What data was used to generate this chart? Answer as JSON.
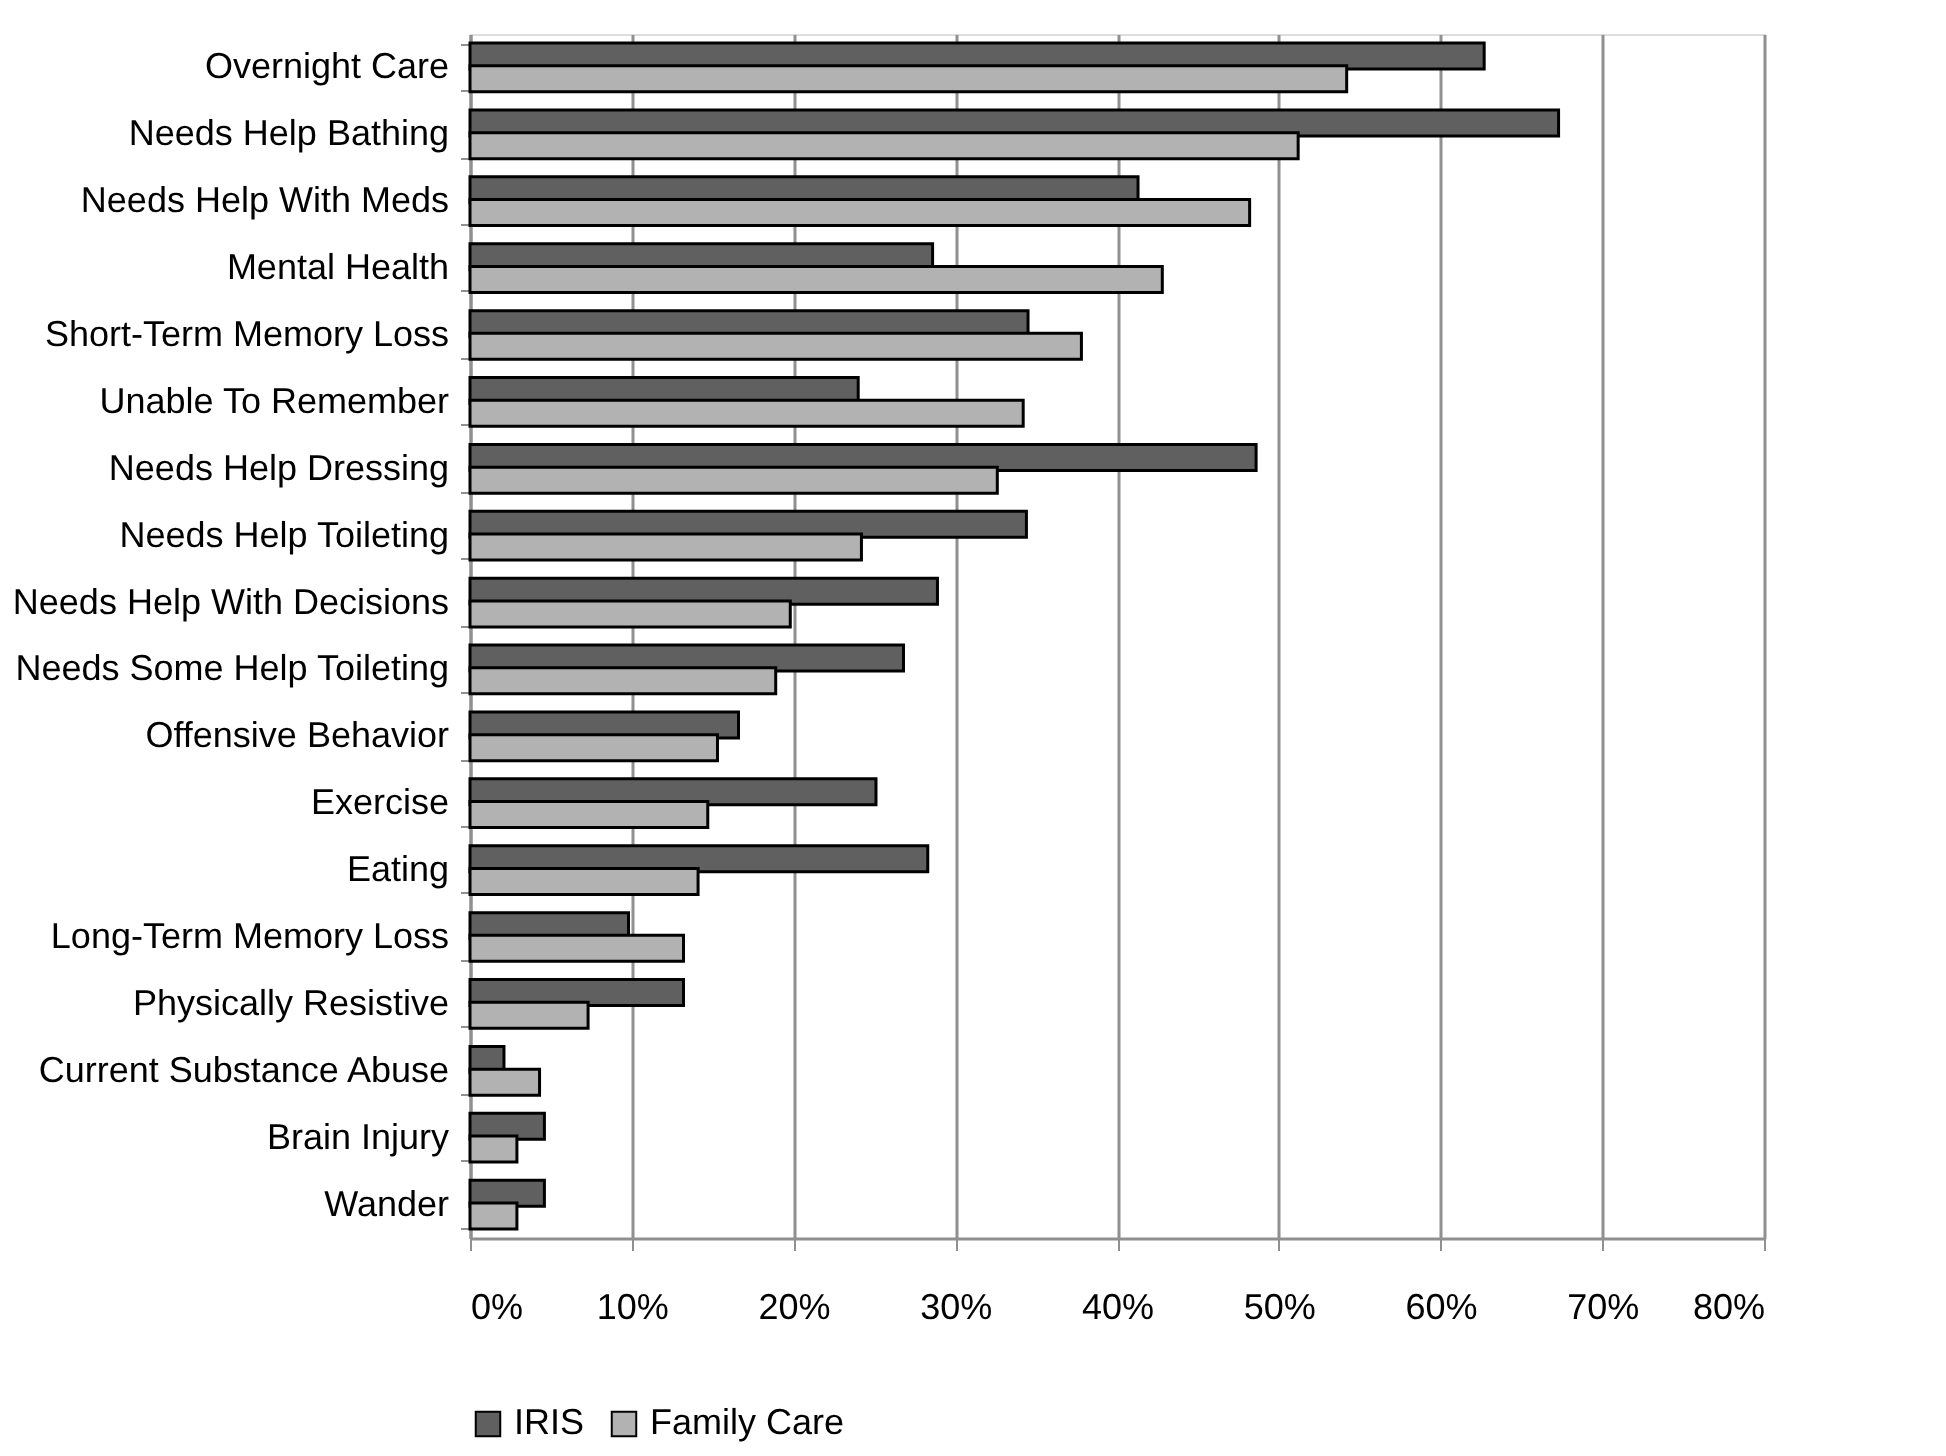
{
  "chart_data": {
    "type": "bar",
    "orientation": "horizontal",
    "categories": [
      "Overnight Care",
      "Needs Help Bathing",
      "Needs Help With Meds",
      "Mental Health",
      "Short-Term Memory Loss",
      "Unable To Remember",
      "Needs Help Dressing",
      "Needs Help Toileting",
      "Needs Help With Decisions",
      "Needs Some Help Toileting",
      "Offensive Behavior",
      "Exercise",
      "Eating",
      "Long-Term Memory Loss",
      "Physically Resistive",
      "Current Substance Abuse",
      "Brain Injury",
      "Wander"
    ],
    "series": [
      {
        "name": "IRIS",
        "color": "#606060",
        "values": [
          62.7,
          67.3,
          41.3,
          28.6,
          34.5,
          24.0,
          48.6,
          34.4,
          28.9,
          26.8,
          16.6,
          25.1,
          28.3,
          9.8,
          13.2,
          2.1,
          4.6,
          4.6
        ]
      },
      {
        "name": "Family Care",
        "color": "#b2b2b2",
        "values": [
          54.2,
          51.2,
          48.2,
          42.8,
          37.8,
          34.2,
          32.6,
          24.2,
          19.8,
          18.9,
          15.3,
          14.7,
          14.1,
          13.2,
          7.3,
          4.3,
          2.9,
          2.9
        ]
      }
    ],
    "xlim": [
      0,
      80
    ],
    "xticks": [
      {
        "value": 0,
        "label": "0%"
      },
      {
        "value": 10,
        "label": "10%"
      },
      {
        "value": 20,
        "label": "20%"
      },
      {
        "value": 30,
        "label": "30%"
      },
      {
        "value": 40,
        "label": "40%"
      },
      {
        "value": 50,
        "label": "50%"
      },
      {
        "value": 60,
        "label": "60%"
      },
      {
        "value": 70,
        "label": "70%"
      },
      {
        "value": 80,
        "label": "80%"
      }
    ],
    "grid": "x",
    "legend": "bottom"
  }
}
